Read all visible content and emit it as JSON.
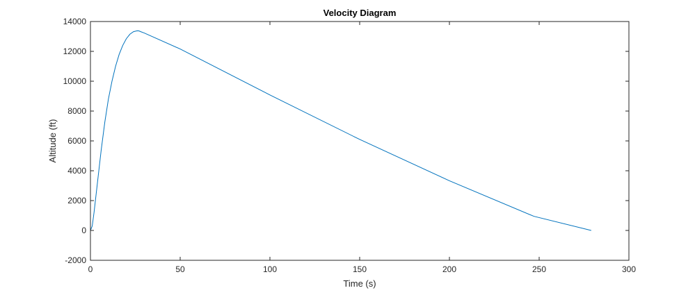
{
  "chart_data": {
    "type": "line",
    "title": "Velocity Diagram",
    "xlabel": "Time (s)",
    "ylabel": "Altitude (ft)",
    "xlim": [
      0,
      300
    ],
    "ylim": [
      -2000,
      14000
    ],
    "xticks": [
      0,
      50,
      100,
      150,
      200,
      250,
      300
    ],
    "yticks": [
      -2000,
      0,
      2000,
      4000,
      6000,
      8000,
      10000,
      12000,
      14000
    ],
    "grid": false,
    "legend": "none",
    "series": [
      {
        "color": "#0072bd",
        "x": [
          0,
          1,
          2,
          4,
          6,
          8,
          10,
          12,
          14,
          16,
          18,
          20,
          22,
          24,
          26,
          27,
          28,
          30,
          50,
          100,
          150,
          200,
          247,
          279
        ],
        "y": [
          0,
          300,
          1200,
          3300,
          5400,
          7250,
          8800,
          10000,
          11000,
          11800,
          12400,
          12850,
          13150,
          13320,
          13380,
          13370,
          13320,
          13230,
          12160,
          9080,
          6100,
          3330,
          950,
          0
        ]
      }
    ]
  }
}
